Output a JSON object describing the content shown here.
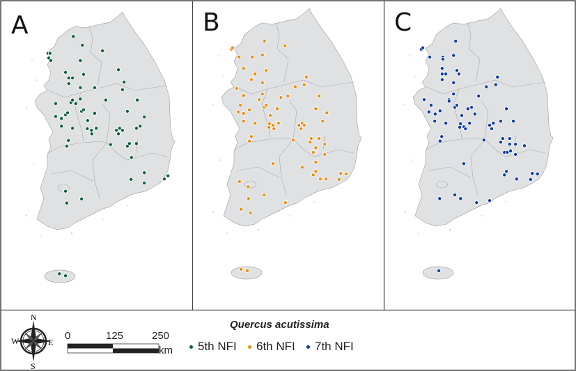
{
  "panels": [
    {
      "label": "A",
      "survey": "5th NFI",
      "color": "#0b5e3c",
      "points": [
        [
          127.04,
          38.12
        ],
        [
          127.26,
          37.95
        ],
        [
          127.75,
          37.84
        ],
        [
          126.42,
          37.79
        ],
        [
          126.47,
          37.79
        ],
        [
          126.44,
          37.7
        ],
        [
          126.49,
          37.65
        ],
        [
          127.21,
          37.65
        ],
        [
          128.14,
          37.47
        ],
        [
          126.85,
          37.42
        ],
        [
          127.29,
          37.38
        ],
        [
          126.93,
          37.31
        ],
        [
          127.02,
          37.31
        ],
        [
          126.93,
          37.2
        ],
        [
          128.28,
          37.23
        ],
        [
          128.24,
          37.08
        ],
        [
          127.21,
          37.12
        ],
        [
          127.56,
          37.12
        ],
        [
          126.61,
          36.81
        ],
        [
          126.98,
          36.83
        ],
        [
          127.02,
          36.88
        ],
        [
          127.21,
          36.9
        ],
        [
          127.1,
          36.81
        ],
        [
          127.83,
          36.88
        ],
        [
          128.6,
          36.88
        ],
        [
          127.24,
          36.66
        ],
        [
          127.29,
          36.69
        ],
        [
          127.56,
          36.62
        ],
        [
          128.36,
          36.66
        ],
        [
          128.77,
          36.55
        ],
        [
          126.61,
          36.56
        ],
        [
          126.75,
          36.52
        ],
        [
          126.85,
          36.59
        ],
        [
          126.9,
          36.63
        ],
        [
          127.39,
          36.48
        ],
        [
          126.75,
          36.37
        ],
        [
          127.02,
          36.33
        ],
        [
          127.38,
          36.32
        ],
        [
          127.48,
          36.29
        ],
        [
          127.49,
          36.22
        ],
        [
          127.6,
          36.33
        ],
        [
          128.09,
          36.29
        ],
        [
          128.17,
          36.33
        ],
        [
          128.24,
          36.29
        ],
        [
          128.14,
          36.22
        ],
        [
          128.58,
          36.33
        ],
        [
          128.67,
          36.37
        ],
        [
          126.92,
          36.09
        ],
        [
          126.88,
          35.98
        ],
        [
          127.95,
          36.01
        ],
        [
          128.36,
          35.98
        ],
        [
          128.41,
          36.03
        ],
        [
          128.58,
          36.03
        ],
        [
          128.46,
          35.76
        ],
        [
          128.77,
          35.46
        ],
        [
          128.45,
          35.33
        ],
        [
          128.77,
          35.26
        ],
        [
          129.26,
          35.34
        ],
        [
          129.35,
          35.4
        ],
        [
          126.85,
          35.1
        ],
        [
          127.24,
          34.95
        ],
        [
          126.88,
          34.87
        ],
        [
          126.7,
          33.49
        ],
        [
          126.85,
          33.45
        ]
      ]
    },
    {
      "label": "B",
      "survey": "6th NFI",
      "color": "#e8900c",
      "points": [
        [
          127.15,
          37.96
        ],
        [
          127.65,
          37.87
        ],
        [
          126.34,
          37.8
        ],
        [
          126.37,
          37.83
        ],
        [
          126.53,
          37.65
        ],
        [
          126.85,
          37.65
        ],
        [
          127.1,
          37.69
        ],
        [
          126.64,
          37.43
        ],
        [
          127.19,
          37.39
        ],
        [
          126.92,
          37.32
        ],
        [
          126.83,
          37.21
        ],
        [
          127.1,
          37.15
        ],
        [
          128.17,
          37.26
        ],
        [
          128.12,
          37.11
        ],
        [
          127.9,
          37.07
        ],
        [
          126.47,
          37.04
        ],
        [
          126.64,
          36.9
        ],
        [
          127.1,
          36.93
        ],
        [
          127.02,
          36.82
        ],
        [
          127.55,
          36.86
        ],
        [
          127.72,
          36.89
        ],
        [
          128.48,
          36.89
        ],
        [
          126.56,
          36.71
        ],
        [
          127.14,
          36.67
        ],
        [
          127.19,
          36.71
        ],
        [
          127.46,
          36.64
        ],
        [
          126.78,
          36.62
        ],
        [
          126.51,
          36.58
        ],
        [
          126.64,
          36.55
        ],
        [
          128.4,
          36.64
        ],
        [
          128.67,
          36.56
        ],
        [
          127.29,
          36.51
        ],
        [
          126.64,
          36.4
        ],
        [
          126.92,
          36.36
        ],
        [
          127.49,
          36.36
        ],
        [
          127.27,
          36.35
        ],
        [
          127.36,
          36.32
        ],
        [
          127.26,
          36.28
        ],
        [
          127.38,
          36.25
        ],
        [
          128.57,
          36.4
        ],
        [
          127.99,
          36.32
        ],
        [
          128.07,
          36.36
        ],
        [
          128.12,
          36.32
        ],
        [
          128.04,
          36.25
        ],
        [
          126.83,
          36.1
        ],
        [
          126.78,
          36.01
        ],
        [
          127.85,
          36.03
        ],
        [
          128.29,
          36.06
        ],
        [
          128.48,
          36.06
        ],
        [
          128.26,
          35.99
        ],
        [
          128.4,
          35.88
        ],
        [
          128.62,
          35.95
        ],
        [
          128.34,
          35.79
        ],
        [
          128.62,
          35.75
        ],
        [
          128.4,
          35.6
        ],
        [
          127.36,
          35.57
        ],
        [
          128.07,
          35.5
        ],
        [
          128.4,
          35.42
        ],
        [
          128.34,
          35.35
        ],
        [
          128.51,
          35.27
        ],
        [
          128.65,
          35.27
        ],
        [
          129.01,
          35.38
        ],
        [
          129.14,
          35.37
        ],
        [
          128.97,
          35.26
        ],
        [
          126.54,
          35.22
        ],
        [
          126.75,
          35.12
        ],
        [
          127.14,
          34.96
        ],
        [
          126.76,
          34.89
        ],
        [
          127.66,
          34.81
        ],
        [
          126.58,
          34.68
        ],
        [
          126.81,
          34.61
        ],
        [
          126.58,
          33.51
        ],
        [
          126.73,
          33.48
        ]
      ]
    },
    {
      "label": "C",
      "survey": "7th NFI",
      "color": "#0c3a9a",
      "points": [
        [
          127.14,
          37.96
        ],
        [
          126.3,
          37.8
        ],
        [
          126.34,
          37.83
        ],
        [
          126.51,
          37.65
        ],
        [
          126.83,
          37.65
        ],
        [
          126.83,
          37.61
        ],
        [
          127.09,
          37.68
        ],
        [
          126.81,
          37.43
        ],
        [
          127.17,
          37.39
        ],
        [
          127.22,
          37.32
        ],
        [
          126.81,
          37.32
        ],
        [
          126.9,
          37.32
        ],
        [
          126.81,
          37.21
        ],
        [
          127.09,
          37.15
        ],
        [
          128.16,
          37.26
        ],
        [
          128.12,
          37.11
        ],
        [
          127.89,
          37.07
        ],
        [
          127.09,
          36.93
        ],
        [
          127.7,
          36.89
        ],
        [
          126.37,
          36.82
        ],
        [
          126.98,
          36.82
        ],
        [
          126.54,
          36.71
        ],
        [
          126.98,
          36.79
        ],
        [
          127.12,
          36.67
        ],
        [
          127.17,
          36.71
        ],
        [
          127.44,
          36.64
        ],
        [
          127.53,
          36.67
        ],
        [
          126.76,
          36.6
        ],
        [
          126.49,
          36.58
        ],
        [
          126.64,
          36.54
        ],
        [
          127.61,
          36.54
        ],
        [
          128.38,
          36.64
        ],
        [
          127.29,
          36.51
        ],
        [
          126.63,
          36.4
        ],
        [
          126.9,
          36.36
        ],
        [
          127.48,
          36.36
        ],
        [
          127.26,
          36.35
        ],
        [
          127.34,
          36.29
        ],
        [
          127.24,
          36.28
        ],
        [
          127.38,
          36.25
        ],
        [
          128.24,
          36.4
        ],
        [
          128.55,
          36.4
        ],
        [
          127.97,
          36.32
        ],
        [
          128.06,
          36.36
        ],
        [
          128.02,
          36.25
        ],
        [
          126.8,
          36.1
        ],
        [
          126.76,
          36.01
        ],
        [
          127.83,
          36.03
        ],
        [
          128.29,
          36.06
        ],
        [
          128.46,
          36.06
        ],
        [
          128.24,
          35.99
        ],
        [
          128.46,
          35.95
        ],
        [
          128.6,
          35.95
        ],
        [
          128.82,
          35.92
        ],
        [
          128.33,
          35.79
        ],
        [
          128.4,
          35.79
        ],
        [
          128.48,
          35.82
        ],
        [
          128.6,
          35.75
        ],
        [
          127.34,
          35.57
        ],
        [
          128.38,
          35.42
        ],
        [
          128.33,
          35.35
        ],
        [
          128.63,
          35.27
        ],
        [
          129.01,
          35.38
        ],
        [
          129.14,
          35.37
        ],
        [
          128.97,
          35.26
        ],
        [
          127.12,
          34.96
        ],
        [
          126.75,
          34.89
        ],
        [
          127.26,
          34.89
        ],
        [
          127.65,
          34.81
        ],
        [
          127.97,
          34.85
        ],
        [
          126.73,
          33.48
        ]
      ]
    }
  ],
  "legend": {
    "species": "Quercus acutissima",
    "items": [
      "5th NFI",
      "6th NFI",
      "7th NFI"
    ]
  },
  "compass": {
    "n": "N",
    "s": "S",
    "e": "E",
    "w": "W"
  },
  "scale": {
    "ticks": [
      "0",
      "125",
      "250"
    ],
    "unit": "km"
  },
  "style": {
    "land": "#e0e1e3",
    "border": "#a8a8a8"
  }
}
